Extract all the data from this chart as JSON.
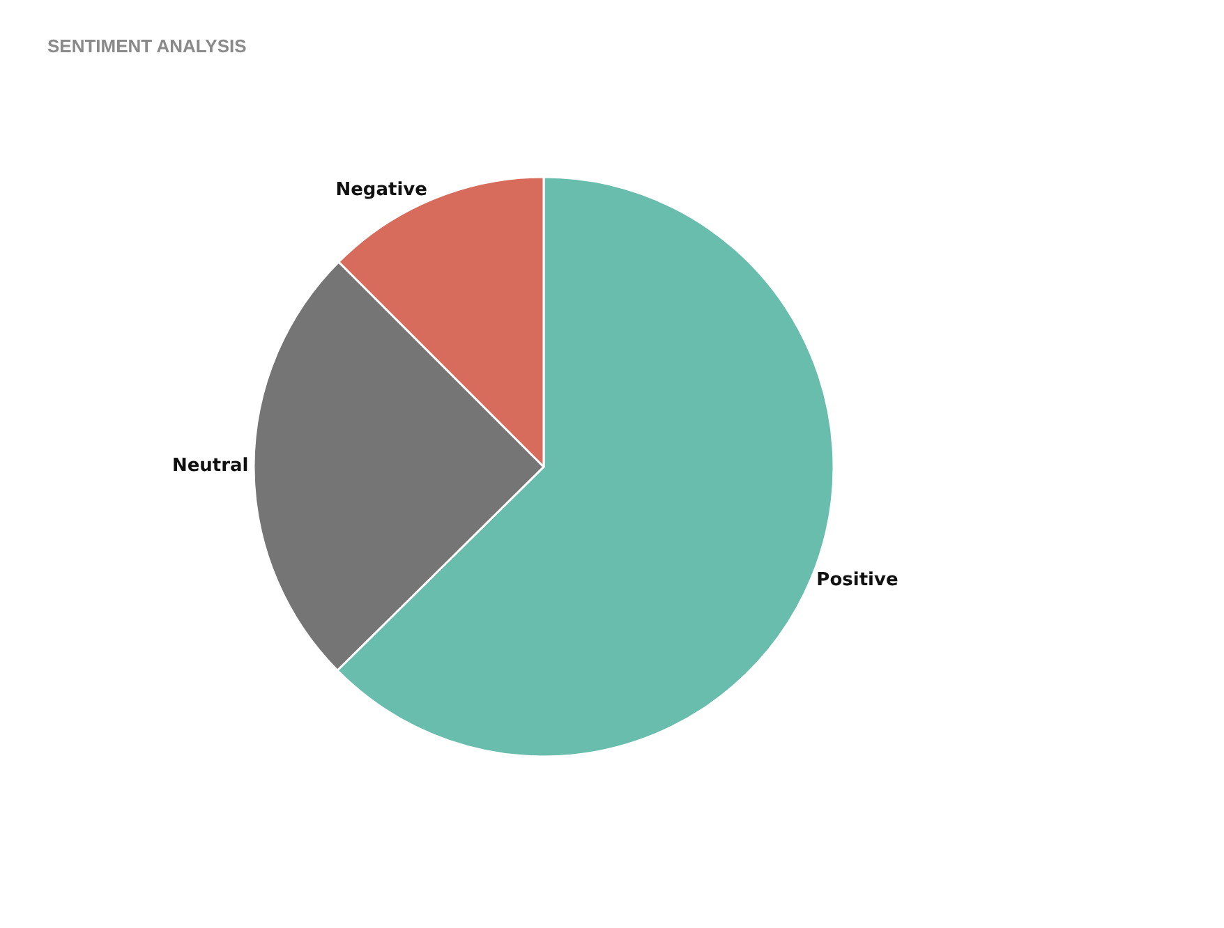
{
  "chart_data": {
    "type": "pie",
    "title": "SENTIMENT ANALYSIS",
    "categories": [
      "Positive",
      "Neutral",
      "Negative"
    ],
    "values": [
      62.6,
      24.9,
      12.5
    ],
    "colors": [
      "#68bdad",
      "#757575",
      "#d86c5c"
    ],
    "legend": false
  }
}
